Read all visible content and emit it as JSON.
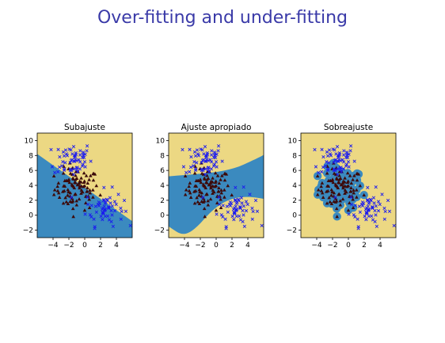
{
  "slide": {
    "title": "Over-fitting and under-fitting"
  },
  "colors": {
    "title": "#3a3aa8",
    "region_a": "#ecd883",
    "region_b": "#3b8abf",
    "class_a_marker": "#3d0b0b",
    "class_b_marker": "#1a1af0"
  },
  "icons": {
    "class_a": "triangle-marker",
    "class_b": "x-marker"
  },
  "chart_data": [
    {
      "type": "scatter",
      "title": "Subajuste",
      "xlabel": "",
      "ylabel": "",
      "xlim": [
        -6,
        6
      ],
      "ylim": [
        -3,
        11
      ],
      "xticks": [
        -4,
        -2,
        0,
        2,
        4
      ],
      "yticks": [
        -2,
        0,
        2,
        4,
        6,
        8,
        10
      ],
      "series": [
        {
          "center": [
            -1,
            3.5
          ],
          "spread": [
            1.4,
            1.4
          ],
          "count": 100,
          "marker": "triangle"
        },
        {
          "center": [
            -1.5,
            7.5
          ],
          "spread": [
            1.2,
            1.2
          ],
          "count": 60,
          "marker": "x"
        },
        {
          "center": [
            2.5,
            1
          ],
          "spread": [
            1.2,
            1.2
          ],
          "count": 60,
          "marker": "x"
        }
      ],
      "decision_boundary": "linear"
    },
    {
      "type": "scatter",
      "title": "Ajuste apropiado",
      "xlabel": "",
      "ylabel": "",
      "xlim": [
        -6,
        6
      ],
      "ylim": [
        -3,
        11
      ],
      "xticks": [
        -4,
        -2,
        0,
        2,
        4
      ],
      "yticks": [
        -2,
        0,
        2,
        4,
        6,
        8,
        10
      ],
      "series": [
        {
          "center": [
            -1,
            3.5
          ],
          "spread": [
            1.4,
            1.4
          ],
          "count": 100,
          "marker": "triangle"
        },
        {
          "center": [
            -1.5,
            7.5
          ],
          "spread": [
            1.2,
            1.2
          ],
          "count": 60,
          "marker": "x"
        },
        {
          "center": [
            2.5,
            1
          ],
          "spread": [
            1.2,
            1.2
          ],
          "count": 60,
          "marker": "x"
        }
      ],
      "decision_boundary": "smooth"
    },
    {
      "type": "scatter",
      "title": "Sobreajuste",
      "xlabel": "",
      "ylabel": "",
      "xlim": [
        -6,
        6
      ],
      "ylim": [
        -3,
        11
      ],
      "xticks": [
        -4,
        -2,
        0,
        2,
        4
      ],
      "yticks": [
        -2,
        0,
        2,
        4,
        6,
        8,
        10
      ],
      "series": [
        {
          "center": [
            -1,
            3.5
          ],
          "spread": [
            1.4,
            1.4
          ],
          "count": 100,
          "marker": "triangle"
        },
        {
          "center": [
            -1.5,
            7.5
          ],
          "spread": [
            1.2,
            1.2
          ],
          "count": 60,
          "marker": "x"
        },
        {
          "center": [
            2.5,
            1
          ],
          "spread": [
            1.2,
            1.2
          ],
          "count": 60,
          "marker": "x"
        }
      ],
      "decision_boundary": "per-point"
    }
  ]
}
